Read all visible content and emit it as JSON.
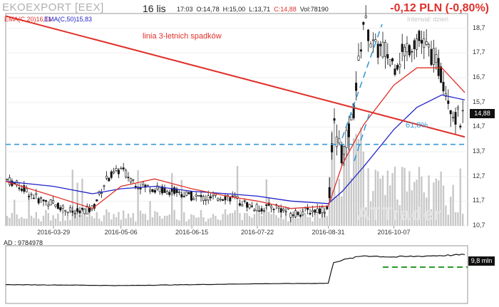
{
  "header": {
    "ticker": "EKOEXPORT [EEX]",
    "date": "16 lis",
    "time": "17:03",
    "open": "O:14,78",
    "high": "H:15,00",
    "low": "L:13,71",
    "close": "C:14,88",
    "volume": "Vol:78190",
    "change": "-0,12 PLN (-0,80%)"
  },
  "legend": {
    "ema20": "EMA(C,20)16,11",
    "ema50": "EMA(C,50)15,83",
    "interval": "Interwał: dzień"
  },
  "annotations": {
    "trendline": "linia 3-letnich spadków",
    "fib": "61,8%"
  },
  "ad": {
    "label": "AD : 9784978",
    "last": "9,8 mln"
  },
  "colors": {
    "ema20": "#e0302a",
    "ema50": "#2323c8",
    "trend": "#e0302a",
    "dashed": "#3a9ad9",
    "ad_support": "#2a9a2a",
    "candles": "#111111",
    "volume": "#c8c8c8"
  },
  "chart_data": [
    {
      "type": "line",
      "title": "",
      "price_axis_ticks": [
        "18,7",
        "17,7",
        "16,7",
        "15,7",
        "14,7",
        "13,7",
        "12,7",
        "11,7",
        "10,7"
      ],
      "date_axis_ticks": [
        "2016-03-29",
        "2016-05-06",
        "2016-06-15",
        "2016-07-22",
        "2016-08-31",
        "2016-10-07"
      ],
      "ylim": [
        10.7,
        19.3
      ],
      "last_price": "14,88",
      "series": [
        {
          "name": "EMA(C,20)",
          "x": [
            "2016-03-02",
            "2016-03-29",
            "2016-04-20",
            "2016-05-06",
            "2016-05-25",
            "2016-06-15",
            "2016-07-05",
            "2016-07-22",
            "2016-08-10",
            "2016-08-31",
            "2016-09-08",
            "2016-09-20",
            "2016-10-07",
            "2016-10-20",
            "2016-11-03",
            "2016-11-16"
          ],
          "values": [
            12.5,
            11.9,
            11.4,
            12.3,
            12.6,
            12.2,
            11.9,
            11.7,
            11.4,
            11.5,
            13.2,
            14.8,
            16.4,
            17.1,
            17.1,
            16.1
          ]
        },
        {
          "name": "EMA(C,50)",
          "x": [
            "2016-03-02",
            "2016-03-29",
            "2016-04-20",
            "2016-05-06",
            "2016-05-25",
            "2016-06-15",
            "2016-07-05",
            "2016-07-22",
            "2016-08-10",
            "2016-08-31",
            "2016-09-08",
            "2016-09-20",
            "2016-10-07",
            "2016-10-20",
            "2016-11-03",
            "2016-11-16"
          ],
          "values": [
            12.5,
            12.3,
            12.0,
            12.2,
            12.3,
            12.1,
            12.0,
            11.9,
            11.7,
            11.6,
            12.1,
            13.1,
            14.6,
            15.5,
            16.0,
            15.8
          ]
        }
      ],
      "trendline": {
        "label": "linia 3-letnich spadków",
        "from": [
          "2016-03-02",
          19.2
        ],
        "to": [
          "2016-11-16",
          14.3
        ]
      },
      "fib_level": {
        "label": "61,8%",
        "value": 14.0
      },
      "price_path": {
        "x": [
          "2016-03-02",
          "2016-03-10",
          "2016-03-20",
          "2016-03-29",
          "2016-04-10",
          "2016-04-20",
          "2016-04-28",
          "2016-05-06",
          "2016-05-15",
          "2016-05-25",
          "2016-06-05",
          "2016-06-15",
          "2016-06-25",
          "2016-07-05",
          "2016-07-15",
          "2016-07-22",
          "2016-08-01",
          "2016-08-10",
          "2016-08-20",
          "2016-08-31",
          "2016-09-03",
          "2016-09-08",
          "2016-09-14",
          "2016-09-20",
          "2016-09-26",
          "2016-10-01",
          "2016-10-07",
          "2016-10-13",
          "2016-10-20",
          "2016-10-27",
          "2016-11-03",
          "2016-11-10",
          "2016-11-16"
        ],
        "values": [
          12.6,
          12.3,
          11.8,
          11.6,
          11.2,
          11.4,
          12.6,
          13.0,
          12.4,
          12.2,
          12.1,
          11.9,
          11.8,
          11.9,
          11.6,
          11.4,
          11.5,
          11.2,
          11.3,
          11.4,
          14.8,
          13.5,
          15.2,
          19.1,
          17.8,
          17.9,
          17.2,
          17.8,
          18.3,
          17.8,
          16.8,
          15.2,
          14.88
        ]
      }
    },
    {
      "type": "area",
      "title": "AD",
      "last_value": "9,8 mln",
      "x": [
        "2016-03-02",
        "2016-04-10",
        "2016-05-06",
        "2016-06-15",
        "2016-07-22",
        "2016-08-31",
        "2016-09-03",
        "2016-09-20",
        "2016-10-07",
        "2016-11-16"
      ],
      "values": [
        3.2,
        3.1,
        3.0,
        3.2,
        3.4,
        3.5,
        8.2,
        9.6,
        9.3,
        9.8
      ]
    }
  ]
}
